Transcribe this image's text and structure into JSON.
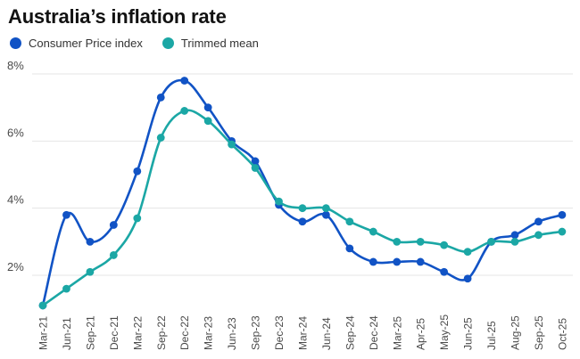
{
  "title": "Australia’s inflation rate",
  "legend": {
    "items": [
      {
        "label": "Consumer Price index",
        "color": "#1153c5"
      },
      {
        "label": "Trimmed mean",
        "color": "#1ba7a5"
      }
    ]
  },
  "colors": {
    "cpi": "#1153c5",
    "trimmed_mean": "#1ba7a5",
    "gridline": "#e4e4e4",
    "tick_text": "#4a4a4a",
    "title_text": "#121212"
  },
  "chart_data": {
    "type": "line",
    "title": "Australia’s inflation rate",
    "xlabel": "",
    "ylabel": "",
    "grid": true,
    "legend_position": "top-left",
    "ylim": [
      0.9,
      8.4
    ],
    "y_ticks": [
      8,
      6,
      4,
      2
    ],
    "y_tick_labels": [
      "8%",
      "6%",
      "4%",
      "2%"
    ],
    "categories": [
      "Mar-21",
      "Jun-21",
      "Sep-21",
      "Dec-21",
      "Mar-22",
      "Sep-22",
      "Dec-22",
      "Mar-23",
      "Jun-23",
      "Sep-23",
      "Dec-23",
      "Mar-24",
      "Jun-24",
      "Sep-24",
      "Dec-24",
      "Mar-25",
      "Apr-25",
      "May-25",
      "Jun-25",
      "Jul-25",
      "Aug-25",
      "Sep-25",
      "Oct-25"
    ],
    "series": [
      {
        "name": "Consumer Price index",
        "color": "#1153c5",
        "values": [
          1.1,
          3.8,
          3.0,
          3.5,
          5.1,
          7.3,
          7.8,
          7.0,
          6.0,
          5.4,
          4.1,
          3.6,
          3.8,
          2.8,
          2.4,
          2.4,
          2.4,
          2.1,
          1.9,
          3.0,
          3.2,
          3.6,
          3.8
        ]
      },
      {
        "name": "Trimmed mean",
        "color": "#1ba7a5",
        "values": [
          1.1,
          1.6,
          2.1,
          2.6,
          3.7,
          6.1,
          6.9,
          6.6,
          5.9,
          5.2,
          4.2,
          4.0,
          4.0,
          3.6,
          3.3,
          3.0,
          3.0,
          2.9,
          2.7,
          3.0,
          3.0,
          3.2,
          3.3
        ]
      }
    ]
  }
}
